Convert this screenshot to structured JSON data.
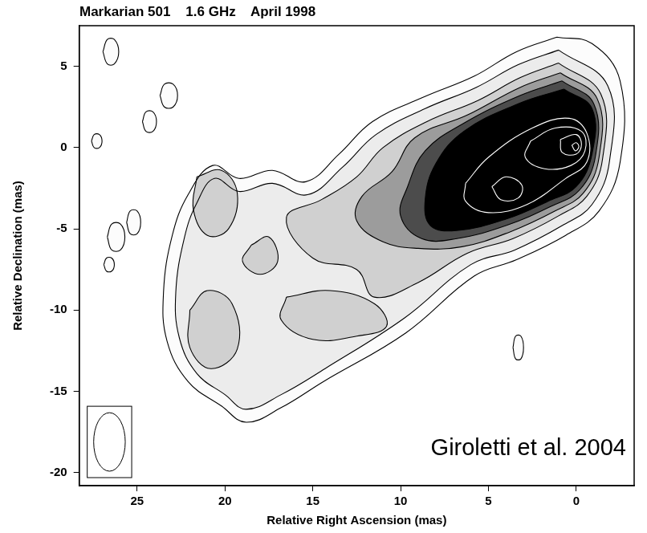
{
  "chart_data": {
    "type": "contour",
    "title": "Markarian 501    1.6 GHz    April 1998",
    "x_label": "Relative Right Ascension (mas)",
    "y_label": "Relative Declination (mas)",
    "xlim": [
      28.3,
      -3.3
    ],
    "xticks": [
      25,
      20,
      15,
      10,
      5,
      0
    ],
    "ylim": [
      -20.8,
      7.5
    ],
    "yticks": [
      5,
      0,
      -5,
      -10,
      -15,
      -20
    ],
    "grid": false,
    "annotations": [
      "Giroletti et al. 2004"
    ],
    "beam": {
      "major": 3.6,
      "minor": 1.8
    },
    "contours": [
      {
        "level": 1,
        "color": "#000000",
        "points": [
          [
            1.1,
            6.8
          ],
          [
            -0.9,
            6.4
          ],
          [
            -2.5,
            4.1
          ],
          [
            -2.5,
            -0.9
          ],
          [
            -1.3,
            -3.9
          ],
          [
            0.6,
            -5.4
          ],
          [
            3.4,
            -6.9
          ],
          [
            5.8,
            -7.9
          ],
          [
            9.7,
            -11.4
          ],
          [
            14.4,
            -14.4
          ],
          [
            16.8,
            -16
          ],
          [
            18.8,
            -16.9
          ],
          [
            20.2,
            -15.9
          ],
          [
            22.1,
            -14.4
          ],
          [
            23.3,
            -11.9
          ],
          [
            23.5,
            -8.9
          ],
          [
            23,
            -5.4
          ],
          [
            22.1,
            -2.9
          ],
          [
            20.7,
            -1.1
          ],
          [
            19.2,
            -1.9
          ],
          [
            17.3,
            -1.4
          ],
          [
            15.4,
            -2.1
          ],
          [
            13.5,
            -0.4
          ],
          [
            11.6,
            1.6
          ],
          [
            8.7,
            3.1
          ],
          [
            5.8,
            4.4
          ],
          [
            3.4,
            5.9
          ]
        ]
      },
      {
        "level": 1,
        "color": "#000000",
        "points": [
          [
            26.95,
            5.9
          ],
          [
            26.7,
            6.65
          ],
          [
            26.3,
            6.65
          ],
          [
            26.05,
            5.9
          ],
          [
            26.3,
            5.15
          ],
          [
            26.7,
            5.15
          ]
        ]
      },
      {
        "level": 1,
        "color": "#000000",
        "points": [
          [
            23.7,
            3.2
          ],
          [
            23.45,
            3.9
          ],
          [
            22.95,
            3.9
          ],
          [
            22.7,
            3.2
          ],
          [
            22.95,
            2.5
          ],
          [
            23.45,
            2.5
          ]
        ]
      },
      {
        "level": 1,
        "color": "#000000",
        "points": [
          [
            24.7,
            1.6
          ],
          [
            24.5,
            2.2
          ],
          [
            24.1,
            2.2
          ],
          [
            23.9,
            1.6
          ],
          [
            24.1,
            1.0
          ],
          [
            24.5,
            1.0
          ]
        ]
      },
      {
        "level": 1,
        "color": "#000000",
        "points": [
          [
            27.6,
            0.4
          ],
          [
            27.45,
            0.8
          ],
          [
            27.15,
            0.8
          ],
          [
            27.0,
            0.4
          ],
          [
            27.15,
            0.0
          ],
          [
            27.45,
            0.0
          ]
        ]
      },
      {
        "level": 1,
        "color": "#000000",
        "points": [
          [
            25.6,
            -4.6
          ],
          [
            25.4,
            -3.9
          ],
          [
            25.0,
            -3.9
          ],
          [
            24.8,
            -4.6
          ],
          [
            25.0,
            -5.3
          ],
          [
            25.4,
            -5.3
          ]
        ]
      },
      {
        "level": 1,
        "color": "#000000",
        "points": [
          [
            26.7,
            -5.5
          ],
          [
            26.45,
            -4.7
          ],
          [
            25.95,
            -4.7
          ],
          [
            25.7,
            -5.5
          ],
          [
            25.95,
            -6.3
          ],
          [
            26.45,
            -6.3
          ]
        ]
      },
      {
        "level": 1,
        "color": "#000000",
        "points": [
          [
            26.9,
            -7.2
          ],
          [
            26.75,
            -6.8
          ],
          [
            26.45,
            -6.8
          ],
          [
            26.3,
            -7.2
          ],
          [
            26.45,
            -7.6
          ],
          [
            26.75,
            -7.6
          ]
        ]
      },
      {
        "level": 1,
        "color": "#000000",
        "points": [
          [
            3.6,
            -12.3
          ],
          [
            3.45,
            -11.6
          ],
          [
            3.15,
            -11.6
          ],
          [
            3.0,
            -12.3
          ],
          [
            3.15,
            -13.0
          ],
          [
            3.45,
            -13.0
          ]
        ]
      },
      {
        "level": 2,
        "color": "#000000",
        "points": [
          [
            1,
            6.0
          ],
          [
            -1.8,
            3.8
          ],
          [
            -1.9,
            -0.8
          ],
          [
            -0.9,
            -3.5
          ],
          [
            0.8,
            -4.8
          ],
          [
            3.5,
            -6.3
          ],
          [
            6,
            -7.2
          ],
          [
            9.8,
            -10.5
          ],
          [
            14.3,
            -13.6
          ],
          [
            16.8,
            -15.2
          ],
          [
            18.8,
            -16.1
          ],
          [
            20,
            -15.2
          ],
          [
            21.6,
            -13.9
          ],
          [
            22.6,
            -11.7
          ],
          [
            22.8,
            -8.9
          ],
          [
            22.3,
            -5.5
          ],
          [
            21.6,
            -3.4
          ],
          [
            20.6,
            -1.9
          ],
          [
            19.2,
            -2.7
          ],
          [
            17.3,
            -2.2
          ],
          [
            15.3,
            -2.9
          ],
          [
            13.3,
            -1.2
          ],
          [
            11.4,
            0.8
          ],
          [
            8.6,
            2.4
          ],
          [
            5.7,
            3.7
          ],
          [
            3.3,
            5.1
          ]
        ]
      },
      {
        "level": 3,
        "color": "#000000",
        "points": [
          [
            1,
            5.2
          ],
          [
            -1.4,
            3.3
          ],
          [
            -1.5,
            -0.7
          ],
          [
            -0.6,
            -3
          ],
          [
            1,
            -4.2
          ],
          [
            3.6,
            -5.6
          ],
          [
            6.2,
            -6.5
          ],
          [
            9,
            -8.3
          ],
          [
            11.5,
            -9.2
          ],
          [
            12.5,
            -7.5
          ],
          [
            15,
            -6.8
          ],
          [
            16.5,
            -4.3
          ],
          [
            14.5,
            -3.2
          ],
          [
            12.5,
            -1.8
          ],
          [
            11,
            0
          ],
          [
            8.5,
            1.6
          ],
          [
            5.6,
            2.9
          ],
          [
            3.2,
            4.3
          ]
        ]
      },
      {
        "level": 3,
        "color": "#000000",
        "points": [
          [
            22,
            -10
          ],
          [
            21,
            -8.8
          ],
          [
            19.6,
            -9.6
          ],
          [
            19.3,
            -12.4
          ],
          [
            20.8,
            -13.6
          ],
          [
            22,
            -12.3
          ]
        ]
      },
      {
        "level": 3,
        "color": "#000000",
        "points": [
          [
            16.5,
            -9.2
          ],
          [
            14,
            -8.8
          ],
          [
            11.5,
            -9.6
          ],
          [
            10.8,
            -11
          ],
          [
            12.5,
            -11.6
          ],
          [
            15,
            -11.8
          ],
          [
            16.8,
            -10.6
          ]
        ]
      },
      {
        "level": 3,
        "color": "#000000",
        "points": [
          [
            21.6,
            -1.8
          ],
          [
            20.2,
            -1.4
          ],
          [
            19.3,
            -2.8
          ],
          [
            19.8,
            -5
          ],
          [
            21,
            -5.4
          ],
          [
            21.8,
            -3.8
          ]
        ]
      },
      {
        "level": 3,
        "color": "#000000",
        "points": [
          [
            18.5,
            -6
          ],
          [
            17.5,
            -5.5
          ],
          [
            17,
            -7
          ],
          [
            18,
            -7.8
          ],
          [
            19,
            -7
          ]
        ]
      },
      {
        "level": 4,
        "color": "#000000",
        "points": [
          [
            0.9,
            4.6
          ],
          [
            -1.2,
            3
          ],
          [
            -1.3,
            -0.6
          ],
          [
            -0.4,
            -2.8
          ],
          [
            1.2,
            -3.9
          ],
          [
            3.8,
            -5.2
          ],
          [
            6.5,
            -6.1
          ],
          [
            9,
            -6.2
          ],
          [
            11,
            -5.8
          ],
          [
            12.5,
            -4.5
          ],
          [
            12.2,
            -3
          ],
          [
            10.5,
            -1.5
          ],
          [
            9.2,
            0.6
          ],
          [
            6.2,
            2
          ],
          [
            3.2,
            3.7
          ]
        ]
      },
      {
        "level": 5,
        "color": "#000000",
        "points": [
          [
            0.8,
            4.1
          ],
          [
            -1,
            2.7
          ],
          [
            -1.1,
            -0.5
          ],
          [
            -0.2,
            -2.6
          ],
          [
            1.4,
            -3.6
          ],
          [
            4,
            -4.8
          ],
          [
            6.8,
            -5.6
          ],
          [
            8.8,
            -5.6
          ],
          [
            10,
            -4.2
          ],
          [
            9.6,
            -2.4
          ],
          [
            8.6,
            -0.2
          ],
          [
            6.4,
            1.5
          ],
          [
            3.2,
            3.2
          ]
        ]
      },
      {
        "level": 6,
        "color": "#000000",
        "points": [
          [
            0.7,
            3.6
          ],
          [
            -0.9,
            2.4
          ],
          [
            -0.9,
            -0.4
          ],
          [
            0,
            -2.4
          ],
          [
            1.6,
            -3.3
          ],
          [
            4,
            -4.4
          ],
          [
            6.8,
            -5.1
          ],
          [
            8.3,
            -4.8
          ],
          [
            8.6,
            -3.2
          ],
          [
            8,
            -1
          ],
          [
            6.4,
            1
          ],
          [
            3.3,
            2.7
          ]
        ]
      },
      {
        "level": 7,
        "color": "#ffffff",
        "points": [
          [
            6.3,
            -2.2
          ],
          [
            5,
            -0.6
          ],
          [
            2.5,
            1.2
          ],
          [
            0.4,
            1.8
          ],
          [
            -0.6,
            0.9
          ],
          [
            -0.6,
            -0.9
          ],
          [
            0.6,
            -1.9
          ],
          [
            2.8,
            -3.5
          ],
          [
            5,
            -4
          ],
          [
            6.3,
            -3.3
          ]
        ]
      },
      {
        "level": 8,
        "color": "#ffffff",
        "points": [
          [
            2.6,
            0.4
          ],
          [
            1.2,
            1.2
          ],
          [
            -0.3,
            1
          ],
          [
            -0.5,
            -0.2
          ],
          [
            0.3,
            -1.1
          ],
          [
            1.8,
            -1.3
          ],
          [
            2.9,
            -0.6
          ]
        ]
      },
      {
        "level": 8,
        "color": "#ffffff",
        "points": [
          [
            4.8,
            -2.4
          ],
          [
            4,
            -1.8
          ],
          [
            3.1,
            -2.3
          ],
          [
            3.3,
            -3.1
          ],
          [
            4.3,
            -3.2
          ]
        ]
      },
      {
        "level": 9,
        "color": "#ffffff",
        "points": [
          [
            0.9,
            0.5
          ],
          [
            0,
            0.8
          ],
          [
            -0.3,
            0.2
          ],
          [
            0,
            -0.4
          ],
          [
            0.8,
            -0.3
          ]
        ]
      },
      {
        "level": 10,
        "color": "#ffffff",
        "points": [
          [
            0.25,
            0.15
          ],
          [
            0,
            0.3
          ],
          [
            -0.15,
            0.05
          ],
          [
            0.05,
            -0.2
          ]
        ]
      }
    ]
  }
}
